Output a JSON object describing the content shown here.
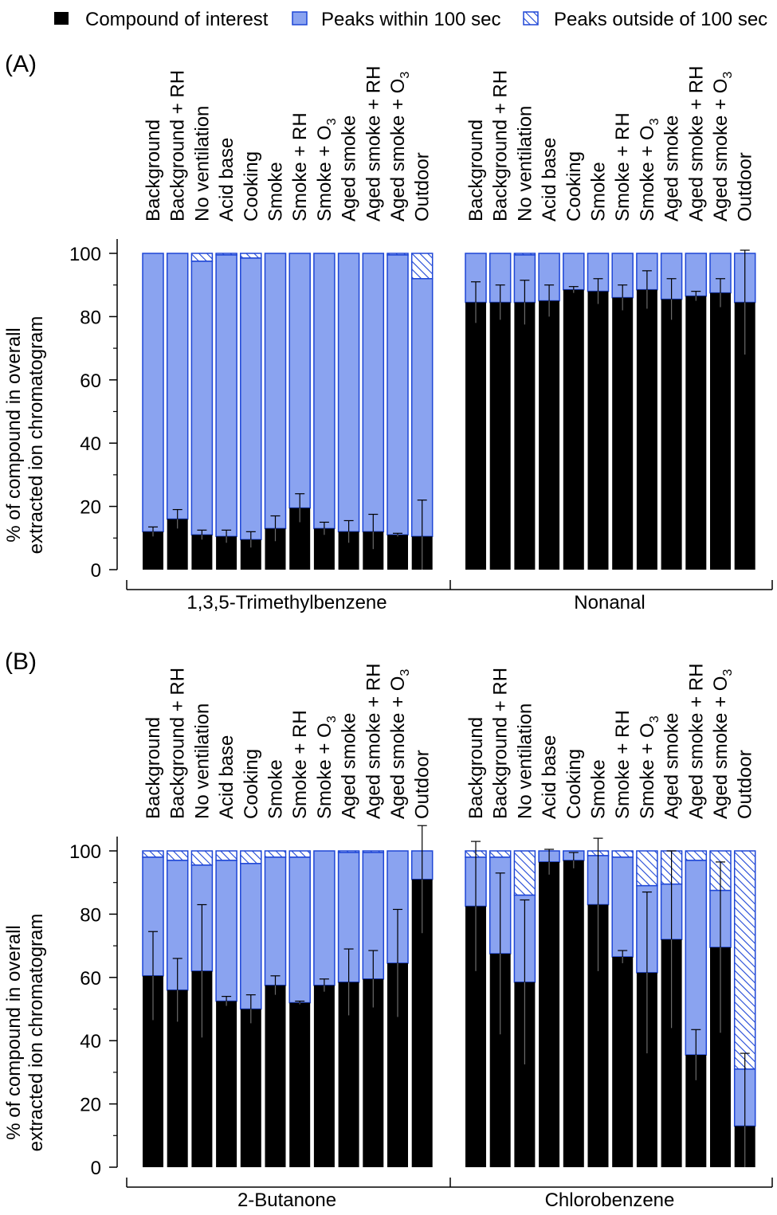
{
  "colors": {
    "compound": "#000000",
    "within": "#8aa3f0",
    "within_edge": "#1e46d6",
    "outside_hatch": "#1e46d6"
  },
  "legend": {
    "compound": "Compound of interest",
    "within": "Peaks within 100 sec",
    "outside": "Peaks outside of 100 sec"
  },
  "panels": [
    {
      "label": "(A)",
      "ylabel_line1": "% of compound in overall",
      "ylabel_line2": "extracted ion chromatogram"
    },
    {
      "label": "(B)",
      "ylabel_line1": "% of compound in overall",
      "ylabel_line2": "extracted ion chromatogram"
    }
  ],
  "chart_data": [
    {
      "type": "bar",
      "panel": "(A)",
      "stacked": true,
      "ylim": [
        0,
        100
      ],
      "yticks": [
        0,
        20,
        40,
        60,
        80,
        100
      ],
      "categories": [
        "Background",
        "Background + RH",
        "No ventilation",
        "Acid base",
        "Cooking",
        "Smoke",
        "Smoke + RH",
        "Smoke + O3",
        "Aged smoke",
        "Aged smoke + RH",
        "Aged smoke + O3",
        "Outdoor"
      ],
      "groups": [
        {
          "name": "1,3,5-Trimethylbenzene",
          "compound": [
            12,
            16,
            11,
            10.5,
            9.5,
            13,
            19.5,
            13,
            12,
            12,
            11,
            10.5
          ],
          "within": [
            88,
            84,
            86.5,
            89,
            89,
            87,
            80.5,
            87,
            88,
            88,
            88.5,
            81.5
          ],
          "outside": [
            0,
            0,
            2.5,
            0.5,
            1.5,
            0,
            0,
            0,
            0,
            0,
            0.5,
            8
          ],
          "error": [
            1.5,
            3,
            1.5,
            2,
            2.5,
            4,
            4.5,
            2,
            3.5,
            5.5,
            0.5,
            11.5
          ]
        },
        {
          "name": "Nonanal",
          "compound": [
            84.5,
            84.5,
            84.5,
            85,
            88.5,
            88,
            86,
            88.5,
            85.5,
            86.5,
            87.5,
            84.5
          ],
          "within": [
            15.5,
            15.5,
            15,
            15,
            11.5,
            12,
            14,
            11.5,
            14.5,
            13.5,
            12.5,
            15.5
          ],
          "outside": [
            0,
            0,
            0.5,
            0,
            0,
            0,
            0,
            0,
            0,
            0,
            0,
            0
          ],
          "error": [
            6.5,
            5.5,
            7,
            5,
            1,
            4,
            4,
            6,
            6.5,
            1.5,
            4.5,
            16.5
          ]
        }
      ]
    },
    {
      "type": "bar",
      "panel": "(B)",
      "stacked": true,
      "ylim": [
        0,
        100
      ],
      "yticks": [
        0,
        20,
        40,
        60,
        80,
        100
      ],
      "categories": [
        "Background",
        "Background + RH",
        "No ventilation",
        "Acid base",
        "Cooking",
        "Smoke",
        "Smoke + RH",
        "Smoke + O3",
        "Aged smoke",
        "Aged smoke + RH",
        "Aged smoke + O3",
        "Outdoor"
      ],
      "groups": [
        {
          "name": "2-Butanone",
          "compound": [
            60.5,
            56,
            62,
            52.5,
            50,
            57.5,
            52,
            57.5,
            58.5,
            59.5,
            64.5,
            91
          ],
          "within": [
            37.5,
            41,
            33.5,
            44.5,
            46,
            40.5,
            46,
            42.5,
            41,
            40,
            35.5,
            9
          ],
          "outside": [
            2,
            3,
            4.5,
            3,
            4,
            2,
            2,
            0,
            0.5,
            0.5,
            0,
            0
          ],
          "error": [
            14,
            10,
            21,
            1.5,
            4.5,
            3,
            0.5,
            2,
            10.5,
            9,
            17,
            17
          ]
        },
        {
          "name": "Chlorobenzene",
          "compound": [
            82.5,
            67.5,
            58.5,
            96.5,
            97,
            83,
            66.5,
            61.5,
            72,
            35.5,
            69.5,
            13
          ],
          "within": [
            15.5,
            30.5,
            27.5,
            3.5,
            3,
            15.5,
            31.5,
            27.5,
            17.5,
            61.5,
            18,
            18
          ],
          "outside": [
            2,
            2,
            14,
            0,
            0,
            1.5,
            2,
            11,
            10.5,
            3,
            12.5,
            69
          ],
          "error": [
            20.5,
            25.5,
            26,
            4,
            2.5,
            21,
            2,
            25.5,
            28,
            8,
            27,
            23
          ]
        }
      ]
    }
  ]
}
